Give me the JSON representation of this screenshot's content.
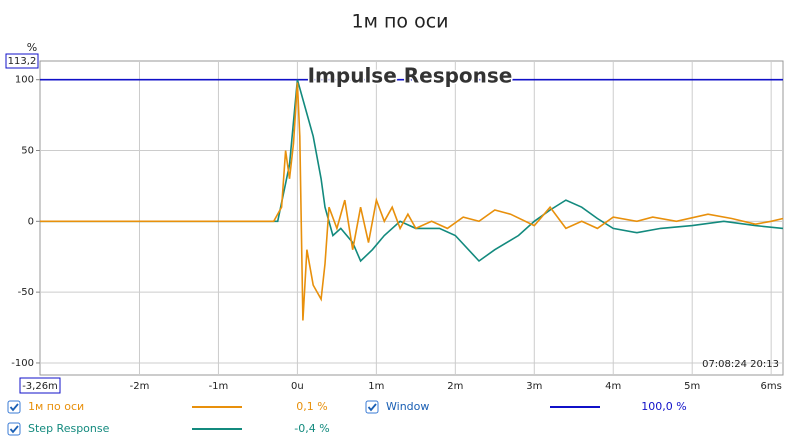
{
  "chart_data": {
    "type": "line",
    "title": "1м по оси",
    "overlay_title": "Impulse Response",
    "y_unit": "%",
    "timestamp": "07:08:24 20:13",
    "xlim": [
      -3.26,
      6.15
    ],
    "ylim": [
      -108.5,
      113.2
    ],
    "xticks": [
      {
        "value": -3.26,
        "label": "-3,26m"
      },
      {
        "value": -2,
        "label": "-2m"
      },
      {
        "value": -1,
        "label": "-1m"
      },
      {
        "value": 0,
        "label": "0u"
      },
      {
        "value": 1,
        "label": "1m"
      },
      {
        "value": 2,
        "label": "2m"
      },
      {
        "value": 3,
        "label": "3m"
      },
      {
        "value": 4,
        "label": "4m"
      },
      {
        "value": 5,
        "label": "5m"
      },
      {
        "value": 6,
        "label": "6ms"
      }
    ],
    "yticks": [
      -100,
      -50,
      0,
      50,
      100,
      {
        "value": 113.2,
        "label": "113,2"
      }
    ],
    "grid": true,
    "series": [
      {
        "name": "1м по оси",
        "color": "#e8900c",
        "readout": "0,1 %",
        "x": [
          -3.26,
          -1.0,
          -0.3,
          -0.2,
          -0.15,
          -0.1,
          -0.05,
          0,
          0.03,
          0.07,
          0.12,
          0.2,
          0.3,
          0.35,
          0.4,
          0.5,
          0.6,
          0.7,
          0.8,
          0.9,
          1.0,
          1.1,
          1.2,
          1.3,
          1.4,
          1.5,
          1.7,
          1.9,
          2.1,
          2.3,
          2.5,
          2.7,
          3.0,
          3.2,
          3.4,
          3.6,
          3.8,
          4.0,
          4.3,
          4.5,
          4.8,
          5.2,
          5.5,
          5.8,
          6.0,
          6.15
        ],
        "values": [
          0,
          0,
          0,
          10,
          50,
          30,
          55,
          98,
          60,
          -70,
          -20,
          -45,
          -55,
          -30,
          10,
          -5,
          15,
          -20,
          10,
          -15,
          15,
          0,
          10,
          -5,
          5,
          -5,
          0,
          -5,
          3,
          0,
          8,
          5,
          -3,
          10,
          -5,
          0,
          -5,
          3,
          0,
          3,
          0,
          5,
          2,
          -2,
          0,
          2
        ]
      },
      {
        "name": "Step Response",
        "color": "#138a7e",
        "readout": "-0,4 %",
        "x": [
          -3.26,
          -1.0,
          -0.25,
          -0.1,
          0,
          0.1,
          0.2,
          0.3,
          0.35,
          0.45,
          0.55,
          0.7,
          0.8,
          0.95,
          1.1,
          1.3,
          1.5,
          1.8,
          2.0,
          2.3,
          2.5,
          2.8,
          3.0,
          3.2,
          3.4,
          3.6,
          3.8,
          4.0,
          4.3,
          4.6,
          5.0,
          5.4,
          5.8,
          6.15
        ],
        "values": [
          0,
          0,
          0,
          40,
          100,
          80,
          60,
          30,
          10,
          -10,
          -5,
          -15,
          -28,
          -20,
          -10,
          0,
          -5,
          -5,
          -10,
          -28,
          -20,
          -10,
          0,
          8,
          15,
          10,
          2,
          -5,
          -8,
          -5,
          -3,
          0,
          -3,
          -5
        ]
      },
      {
        "name": "Window",
        "color": "#1010c8",
        "readout": "100,0 %",
        "x": [
          -3.26,
          6.15
        ],
        "values": [
          100,
          100
        ]
      }
    ]
  }
}
